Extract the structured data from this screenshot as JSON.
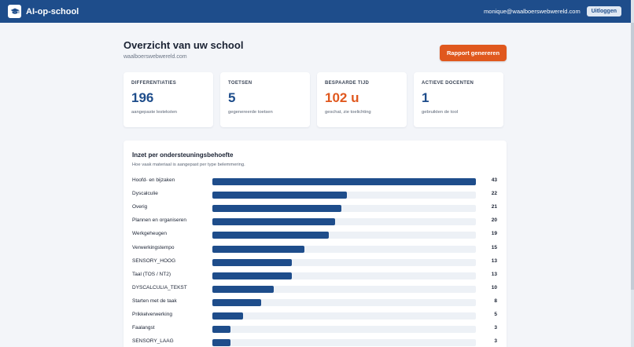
{
  "header": {
    "brand": "AI-op-school",
    "logo_icon": "graduation-cap-icon",
    "user_email": "monique@waalboerswebwereld.com",
    "logout_label": "Uitloggen",
    "bg_color": "#1e4d8b"
  },
  "page": {
    "title": "Overzicht van uw school",
    "subtitle": "waalboerswebwereld.com",
    "report_button": "Rapport genereren"
  },
  "stats": [
    {
      "label": "DIFFERENTIATIES",
      "value": "196",
      "sub": "aangepaste lesteksten"
    },
    {
      "label": "TOETSEN",
      "value": "5",
      "sub": "gegenereerde toetsen"
    },
    {
      "label": "BESPAARDE TIJD",
      "value": "102 u",
      "sub": "geschat, zie toelichting",
      "accent": true
    },
    {
      "label": "ACTIEVE DOCENTEN",
      "value": "1",
      "sub": "gebruikten de tool"
    }
  ],
  "panel": {
    "title": "Inzet per ondersteuningsbehoefte",
    "subtitle": "Hoe vaak materiaal is aangepast per type belemmering."
  },
  "chart_data": {
    "type": "bar",
    "orientation": "horizontal",
    "max": 43,
    "categories": [
      "Hoofd- en bijzaken",
      "Dyscalculie",
      "Overig",
      "Plannen en organiseren",
      "Werkgeheugen",
      "Verwerkingstempo",
      "SENSORY_HOOG",
      "Taal (TOS / NT2)",
      "DYSCALCULIA_TEKST",
      "Starten met de taak",
      "Prikkelverwerking",
      "Faalangst",
      "SENSORY_LAAG"
    ],
    "values": [
      43,
      22,
      21,
      20,
      19,
      15,
      13,
      13,
      10,
      8,
      5,
      3,
      3
    ],
    "bar_color": "#1e4d8b",
    "track_color": "#edf1f6"
  },
  "colors": {
    "primary": "#1e4d8b",
    "accent": "#e0581e"
  }
}
